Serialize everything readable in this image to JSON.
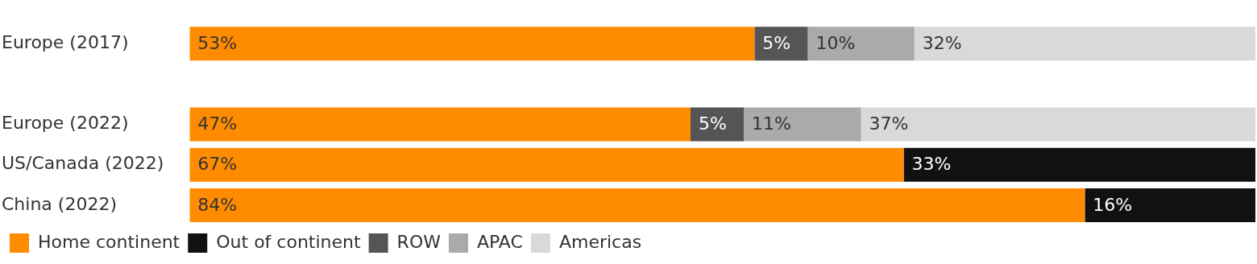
{
  "chart_data": {
    "type": "bar",
    "orientation": "horizontal",
    "stacked": true,
    "categories": [
      "Europe (2017)",
      null,
      "Europe (2022)",
      "US/Canada (2022)",
      "China (2022)"
    ],
    "series": [
      {
        "name": "Home continent",
        "color": "#ff8c00",
        "values": [
          53,
          null,
          47,
          67,
          84
        ],
        "value_labels": [
          "53%",
          null,
          "47%",
          "67%",
          "84%"
        ]
      },
      {
        "name": "Out of continent",
        "color": "#111111",
        "values": [
          null,
          null,
          null,
          33,
          16
        ],
        "value_labels": [
          null,
          null,
          null,
          "33%",
          "16%"
        ]
      },
      {
        "name": "ROW",
        "color": "#555555",
        "values": [
          5,
          null,
          5,
          null,
          null
        ],
        "value_labels": [
          "5%",
          null,
          "5%",
          null,
          null
        ]
      },
      {
        "name": "APAC",
        "color": "#aaaaaa",
        "values": [
          10,
          null,
          11,
          null,
          null
        ],
        "value_labels": [
          "10%",
          null,
          "11%",
          null,
          null
        ]
      },
      {
        "name": "Americas",
        "color": "#d9d9d9",
        "values": [
          32,
          null,
          37,
          null,
          null
        ],
        "value_labels": [
          "32%",
          null,
          "37%",
          null,
          null
        ]
      }
    ],
    "xlim": [
      0,
      100
    ],
    "tick_labels": "y",
    "grid": false,
    "legend": "bottom left"
  }
}
